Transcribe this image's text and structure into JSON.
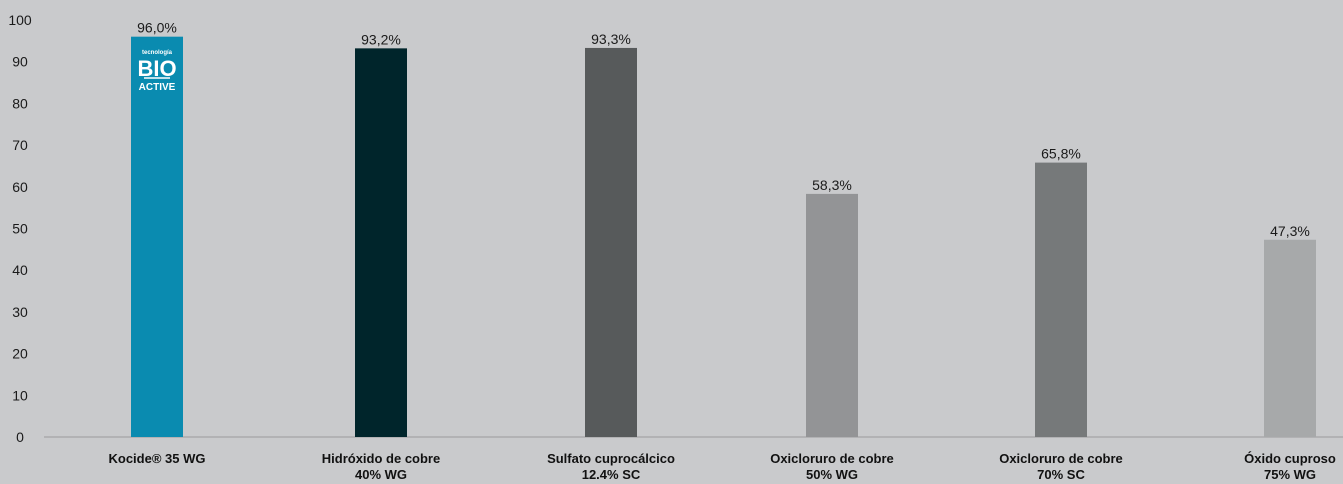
{
  "chart_data": {
    "type": "bar",
    "title": "",
    "xlabel": "",
    "ylabel": "",
    "ylim": [
      0,
      100
    ],
    "yticks": [
      0,
      10,
      20,
      30,
      40,
      50,
      60,
      70,
      80,
      90,
      100
    ],
    "grid": false,
    "categories": [
      [
        "Kocide® 35 WG"
      ],
      [
        "Hidróxido de cobre",
        "40% WG"
      ],
      [
        "Sulfato cuprocálcico",
        "12.4% SC"
      ],
      [
        "Oxicloruro de cobre",
        "50% WG"
      ],
      [
        "Oxicloruro de cobre",
        "70% SC"
      ],
      [
        "Óxido cuproso",
        "75% WG"
      ]
    ],
    "values": [
      96.0,
      93.2,
      93.3,
      58.3,
      65.8,
      47.3
    ],
    "data_labels": [
      "96,0%",
      "93,2%",
      "93,3%",
      "58,3%",
      "65,8%",
      "47,3%"
    ],
    "colors": [
      "#0a8bb0",
      "#00252b",
      "#575a5b",
      "#939496",
      "#76797a",
      "#a7a9aa"
    ],
    "badge": {
      "bar_index": 0,
      "line1": "tecnología",
      "line2": "BIO",
      "line3": "ACTIVE"
    }
  }
}
